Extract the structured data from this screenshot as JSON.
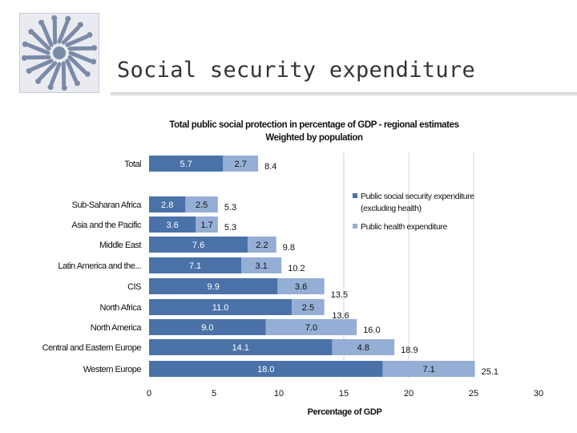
{
  "slide": {
    "title": "Social security expenditure",
    "logo_icon": "figures-circle-logo-icon"
  },
  "chart_data": {
    "type": "bar",
    "orientation": "horizontal",
    "stacked": true,
    "title": "Total public social protection in percentage of GDP - regional estimates",
    "subtitle": "Weighted by population",
    "xlabel": "Percentage of GDP",
    "xlim": [
      0,
      30
    ],
    "xticks": [
      "0",
      "5",
      "10",
      "15",
      "20",
      "25",
      "30"
    ],
    "gridlines": [
      15,
      20,
      25
    ],
    "legend_position": "right",
    "categories": [
      "Total",
      "Sub-Saharan Africa",
      "Asia and the Pacific",
      "Middle East",
      "Latin America and the...",
      "CIS",
      "North Africa",
      "North America",
      "Central and Eastern Europe",
      "Western Europe"
    ],
    "series": [
      {
        "name": "Public social security expenditure (excluding health)",
        "color": "#4a72a8",
        "values": [
          5.7,
          2.8,
          3.6,
          7.6,
          7.1,
          9.9,
          11.0,
          9.0,
          14.1,
          18.0
        ],
        "labels": [
          "5.7",
          "2.8",
          "3.6",
          "7.6",
          "7.1",
          "9.9",
          "11.0",
          "9.0",
          "14.1",
          "18.0"
        ]
      },
      {
        "name": "Public health expenditure",
        "color": "#95aed6",
        "values": [
          2.7,
          2.5,
          1.7,
          2.2,
          3.1,
          3.6,
          2.5,
          7.0,
          4.8,
          7.1
        ],
        "labels": [
          "2.7",
          "2.5",
          "1.7",
          "2.2",
          "3.1",
          "3.6",
          "2.5",
          "7.0",
          "4.8",
          "7.1"
        ]
      }
    ],
    "totals": [
      8.4,
      5.3,
      5.3,
      9.8,
      10.2,
      13.5,
      13.6,
      16.0,
      18.9,
      25.1
    ],
    "total_labels": [
      "8.4",
      "5.3",
      "5.3",
      "9.8",
      "10.2",
      "13.5",
      "13.6",
      "16.0",
      "18.9",
      "25.1"
    ]
  }
}
